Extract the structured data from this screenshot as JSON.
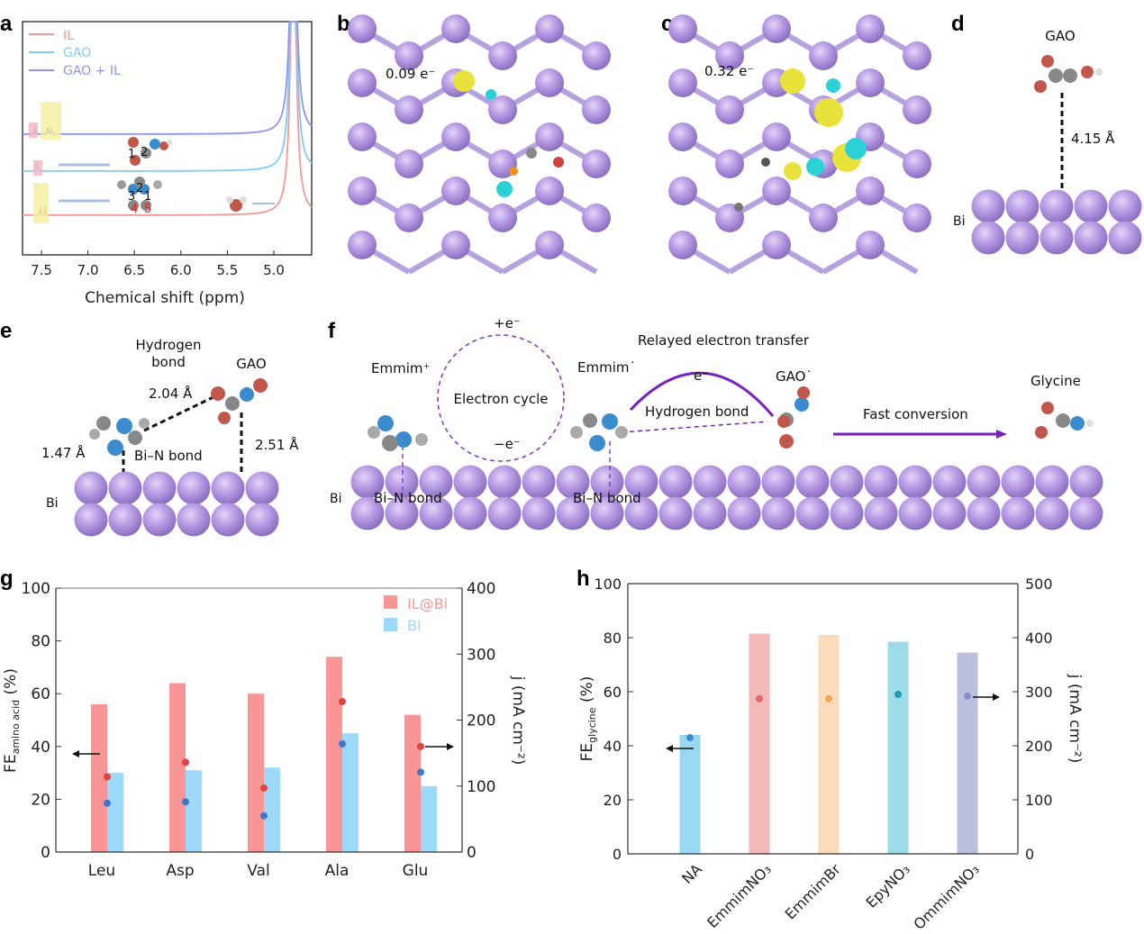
{
  "panel_labels": [
    "a",
    "b",
    "c",
    "d",
    "e",
    "f",
    "g",
    "h"
  ],
  "panel_b": {
    "charge": "0.09 e⁻"
  },
  "panel_c": {
    "charge": "0.32 e⁻"
  },
  "panel_d": {
    "molecule": "GAO",
    "distance": "4.15 Å",
    "surface": "Bi"
  },
  "panel_e": {
    "hbond_title_1": "Hydrogen",
    "hbond_title_2": "bond",
    "molecule": "GAO",
    "hbond_distance": "2.04 Å",
    "gao_distance": "2.51 Å",
    "bin_distance": "1.47 Å",
    "bin_label": "Bi–N bond",
    "surface": "Bi"
  },
  "panel_f": {
    "emmim_plus": "Emmim⁺",
    "electron_cycle": "Electron cycle",
    "plus_e": "+e⁻",
    "minus_e": "−e⁻",
    "emmim_radical": "Emmim˙",
    "relayed": "Relayed electron transfer",
    "e_label": "e⁻",
    "gao_radical": "GAO˙",
    "hbond": "Hydrogen bond",
    "fast": "Fast conversion",
    "glycine": "Glycine",
    "bin_1": "Bi–N bond",
    "bin_2": "Bi–N bond",
    "surface": "Bi"
  },
  "chart_data": [
    {
      "panel": "a",
      "type": "line",
      "xlabel": "Chemical shift (ppm)",
      "ylabel": "",
      "xlim": [
        7.7,
        4.59
      ],
      "x_reversed": true,
      "xticks": [
        "7.5",
        "7.0",
        "6.5",
        "6.0",
        "5.5",
        "5.0"
      ],
      "legend_position": "top-left",
      "series": [
        {
          "name": "IL",
          "color": "#f4999a",
          "peaks_ppm": [
            7.51,
            7.46,
            4.79
          ]
        },
        {
          "name": "GAO",
          "color": "#7fcdf4",
          "peaks_ppm": [
            7.55,
            4.79
          ]
        },
        {
          "name": "GAO + IL",
          "color": "#8f94f0",
          "peaks_ppm": [
            7.57,
            7.43,
            7.39,
            4.79
          ]
        }
      ],
      "annotations": [
        "1",
        "2",
        "3",
        "1",
        "2",
        "4",
        "5"
      ]
    },
    {
      "panel": "g",
      "type": "bar",
      "categories": [
        "Leu",
        "Asp",
        "Val",
        "Ala",
        "Glu"
      ],
      "ylabel": "FE_amino acid (%)",
      "ylabel_main": "FE",
      "ylabel_sub": "amino acid",
      "ylabel_tail": " (%)",
      "ylim": [
        0,
        100
      ],
      "yticks": [
        "0",
        "20",
        "40",
        "60",
        "80",
        "100"
      ],
      "y2label": "j (mA cm⁻²)",
      "y2lim": [
        0,
        400
      ],
      "y2ticks": [
        "0",
        "100",
        "200",
        "300",
        "400"
      ],
      "legend_position": "top-right",
      "series": [
        {
          "name": "IL@Bi",
          "color": "#f99595",
          "values": [
            56,
            64,
            60,
            74,
            52
          ],
          "j_values": [
            114,
            136,
            97,
            228,
            160
          ],
          "dot_color": "#e0463f"
        },
        {
          "name": "Bi",
          "color": "#9dd9fb",
          "values": [
            30,
            31,
            32,
            45,
            25
          ],
          "j_values": [
            74,
            76,
            55,
            164,
            121
          ],
          "dot_color": "#3f78c9"
        }
      ]
    },
    {
      "panel": "h",
      "type": "bar",
      "categories": [
        "NA",
        "EmmimNO₃",
        "EmmimBr",
        "EpyNO₃",
        "OmmimNO₃"
      ],
      "ylabel": "FE_glycine (%)",
      "ylabel_main": "FE",
      "ylabel_sub": "glycine",
      "ylabel_tail": " (%)",
      "ylim": [
        0,
        100
      ],
      "yticks": [
        "0",
        "20",
        "40",
        "60",
        "80",
        "100"
      ],
      "y2label": "j (mA cm⁻²)",
      "y2lim": [
        0,
        500
      ],
      "y2ticks": [
        "0",
        "100",
        "200",
        "300",
        "400",
        "500"
      ],
      "values": [
        44,
        81.5,
        81,
        78.5,
        74.5
      ],
      "j_values": [
        215,
        287,
        287,
        295,
        292
      ],
      "colors": [
        "#9ad8f2",
        "#f2b9b8",
        "#fadcbd",
        "#9cdbe8",
        "#bcc0df"
      ],
      "dot_colors": [
        "#3a8fcf",
        "#e06a6a",
        "#f1a55a",
        "#1c9bb3",
        "#8a8fd0"
      ]
    }
  ]
}
